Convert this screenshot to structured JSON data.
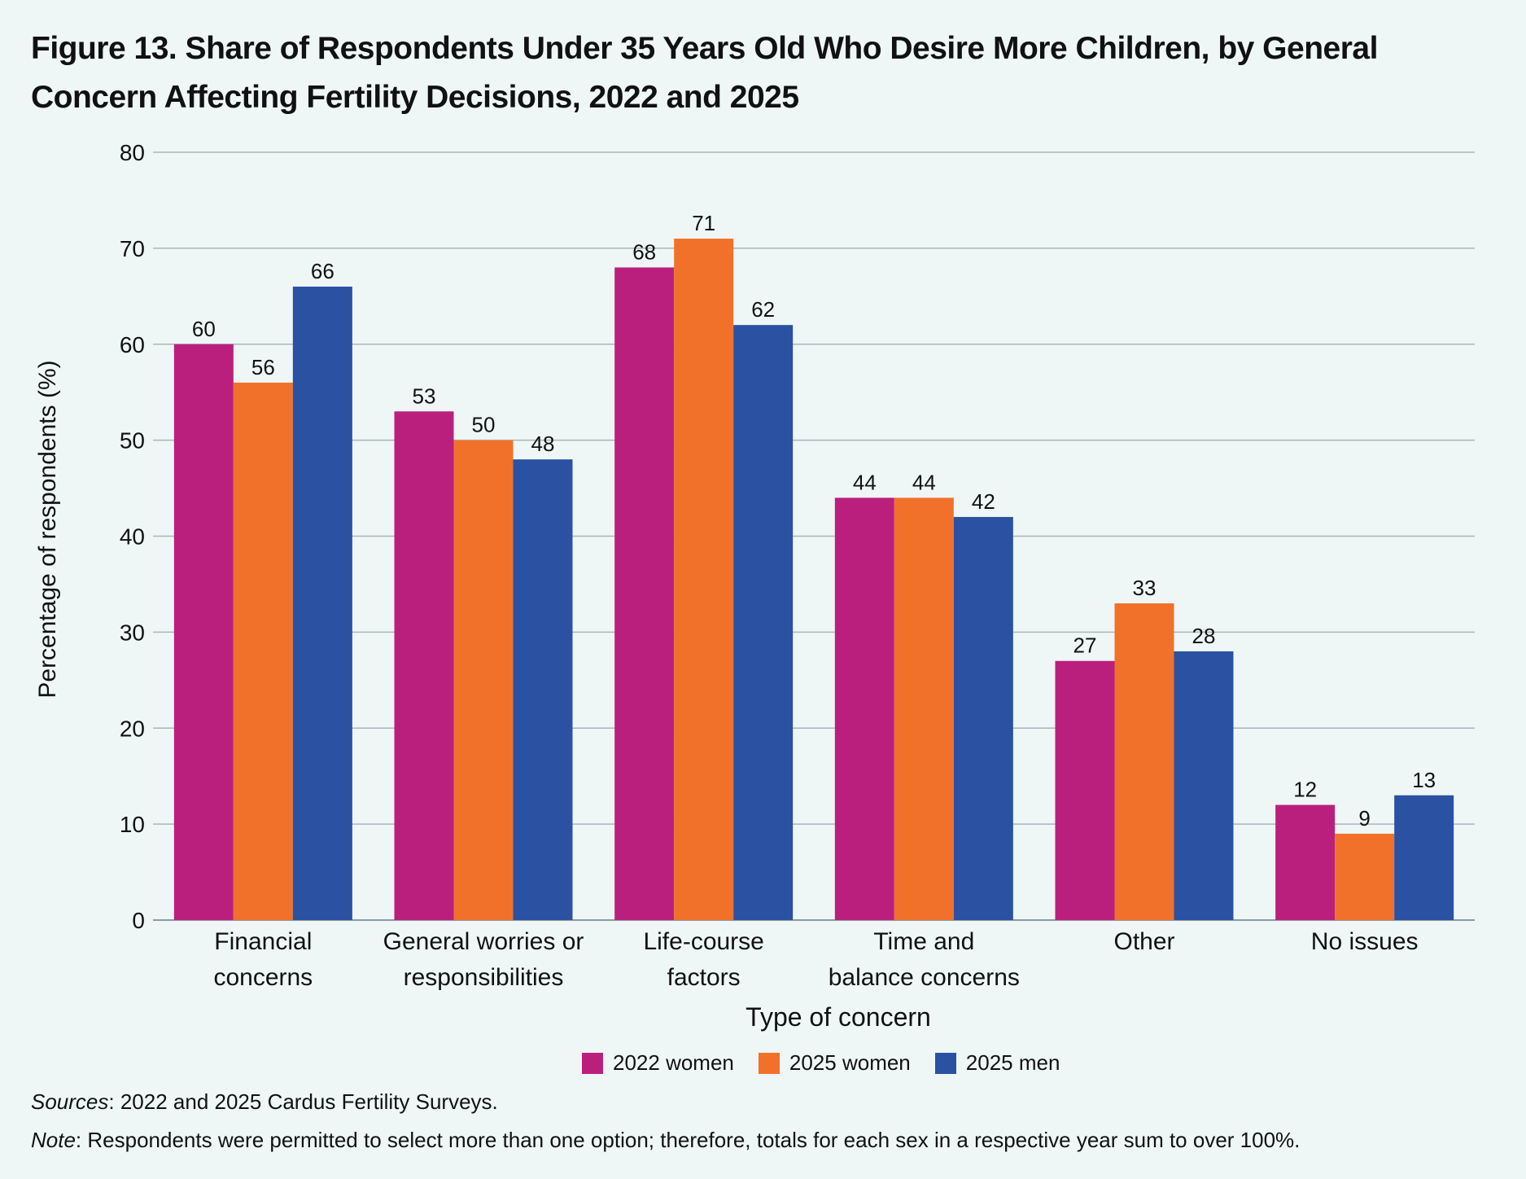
{
  "chart_data": {
    "type": "bar",
    "title": "Figure 13. Share of Respondents Under 35 Years Old Who Desire More Children, by General Concern Affecting Fertility Decisions, 2022 and 2025",
    "xlabel": "Type of concern",
    "ylabel": "Percentage of respondents (%)",
    "ylim": [
      0,
      80
    ],
    "yticks": [
      0,
      10,
      20,
      30,
      40,
      50,
      60,
      70,
      80
    ],
    "grid": true,
    "legend_position": "bottom",
    "categories": [
      [
        "Financial",
        "concerns"
      ],
      [
        "General worries or",
        "responsibilities"
      ],
      [
        "Life-course",
        "factors"
      ],
      [
        "Time and",
        "balance concerns"
      ],
      [
        "Other"
      ],
      [
        "No issues"
      ]
    ],
    "series": [
      {
        "name": "2022 women",
        "color": "#bb1f7e",
        "values": [
          60,
          53,
          68,
          44,
          27,
          12
        ]
      },
      {
        "name": "2025 women",
        "color": "#f2712a",
        "values": [
          56,
          50,
          71,
          44,
          33,
          9
        ]
      },
      {
        "name": "2025 men",
        "color": "#2a51a2",
        "values": [
          66,
          48,
          62,
          42,
          28,
          13
        ]
      }
    ]
  },
  "footer": {
    "sources_label": "Sources",
    "sources_text": ": 2022 and 2025 Cardus Fertility Surveys.",
    "note_label": "Note",
    "note_text": ": Respondents were permitted to select more than one option; therefore, totals for each sex in a respective year sum to over 100%."
  }
}
